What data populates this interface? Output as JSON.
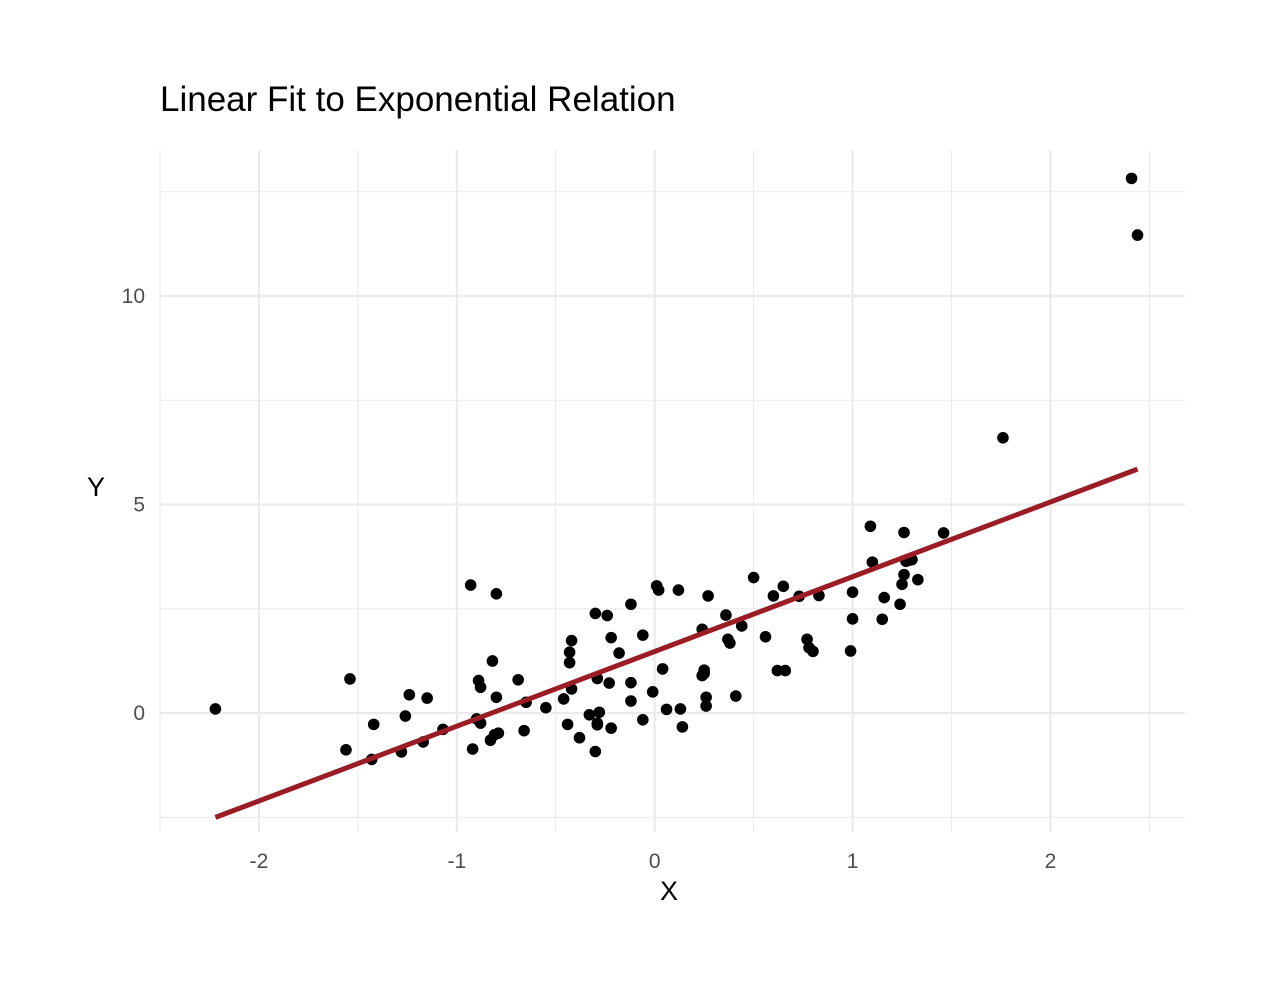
{
  "chart_data": {
    "type": "scatter",
    "title": "Linear Fit to Exponential Relation",
    "xlabel": "X",
    "ylabel": "Y",
    "xlim": [
      -2.5,
      2.68
    ],
    "ylim": [
      -2.85,
      13.5
    ],
    "x_ticks": [
      "-2",
      "-1",
      "0",
      "1",
      "2"
    ],
    "y_ticks": [
      "0",
      "5",
      "10"
    ],
    "grid": true,
    "legend": "none",
    "colors": {
      "points": "#000000",
      "fit_line": "#9b1c25",
      "grid": "#ebebeb",
      "tick_text": "#4d4d4d"
    },
    "series": [
      {
        "type": "scatter",
        "x": [
          -2.22,
          -1.56,
          -1.54,
          -1.43,
          -1.42,
          -1.28,
          -1.26,
          -1.24,
          -1.17,
          -1.15,
          -1.07,
          -0.93,
          -0.92,
          -0.9,
          -0.89,
          -0.88,
          -0.88,
          -0.83,
          -0.82,
          -0.81,
          -0.8,
          -0.8,
          -0.79,
          -0.69,
          -0.66,
          -0.65,
          -0.55,
          -0.46,
          -0.44,
          -0.43,
          -0.43,
          -0.42,
          -0.42,
          -0.38,
          -0.33,
          -0.3,
          -0.3,
          -0.29,
          -0.29,
          -0.29,
          -0.28,
          -0.24,
          -0.23,
          -0.22,
          -0.22,
          -0.18,
          -0.12,
          -0.12,
          -0.12,
          -0.06,
          -0.06,
          -0.01,
          0.01,
          0.02,
          0.04,
          0.06,
          0.12,
          0.13,
          0.14,
          0.24,
          0.24,
          0.25,
          0.25,
          0.26,
          0.26,
          0.27,
          0.36,
          0.37,
          0.38,
          0.41,
          0.44,
          0.5,
          0.56,
          0.6,
          0.62,
          0.65,
          0.66,
          0.73,
          0.77,
          0.78,
          0.8,
          0.83,
          0.99,
          1.0,
          1.0,
          1.09,
          1.1,
          1.15,
          1.16,
          1.24,
          1.25,
          1.26,
          1.26,
          1.27,
          1.29,
          1.3,
          1.33,
          1.46,
          1.76,
          2.41,
          2.44
        ],
        "y": [
          0.1,
          -0.88,
          0.82,
          -1.11,
          -0.27,
          -0.93,
          -0.07,
          0.44,
          -0.69,
          0.36,
          -0.39,
          3.07,
          -0.86,
          -0.14,
          0.78,
          0.62,
          -0.24,
          -0.65,
          1.25,
          -0.52,
          2.86,
          0.38,
          -0.48,
          0.8,
          -0.42,
          0.26,
          0.13,
          0.34,
          -0.27,
          1.46,
          1.21,
          1.74,
          0.58,
          -0.59,
          -0.04,
          -0.92,
          2.39,
          0.83,
          -0.24,
          -0.28,
          0.02,
          2.34,
          0.72,
          -0.36,
          1.81,
          1.44,
          0.73,
          2.61,
          0.29,
          1.87,
          -0.16,
          0.51,
          3.05,
          2.95,
          1.06,
          0.09,
          2.95,
          0.1,
          -0.33,
          2.01,
          0.9,
          0.95,
          1.03,
          0.17,
          0.38,
          2.81,
          2.35,
          1.77,
          1.68,
          0.41,
          2.09,
          3.25,
          1.83,
          2.81,
          1.02,
          3.04,
          1.02,
          2.8,
          1.77,
          1.57,
          1.48,
          2.82,
          1.49,
          2.9,
          2.26,
          4.48,
          3.62,
          2.25,
          2.77,
          2.61,
          3.09,
          3.32,
          4.33,
          3.64,
          3.67,
          3.68,
          3.2,
          4.32,
          6.6,
          12.82,
          11.46
        ]
      },
      {
        "type": "line",
        "name": "",
        "x": [
          -2.22,
          2.44
        ],
        "y": [
          -2.5,
          5.85
        ]
      }
    ]
  }
}
